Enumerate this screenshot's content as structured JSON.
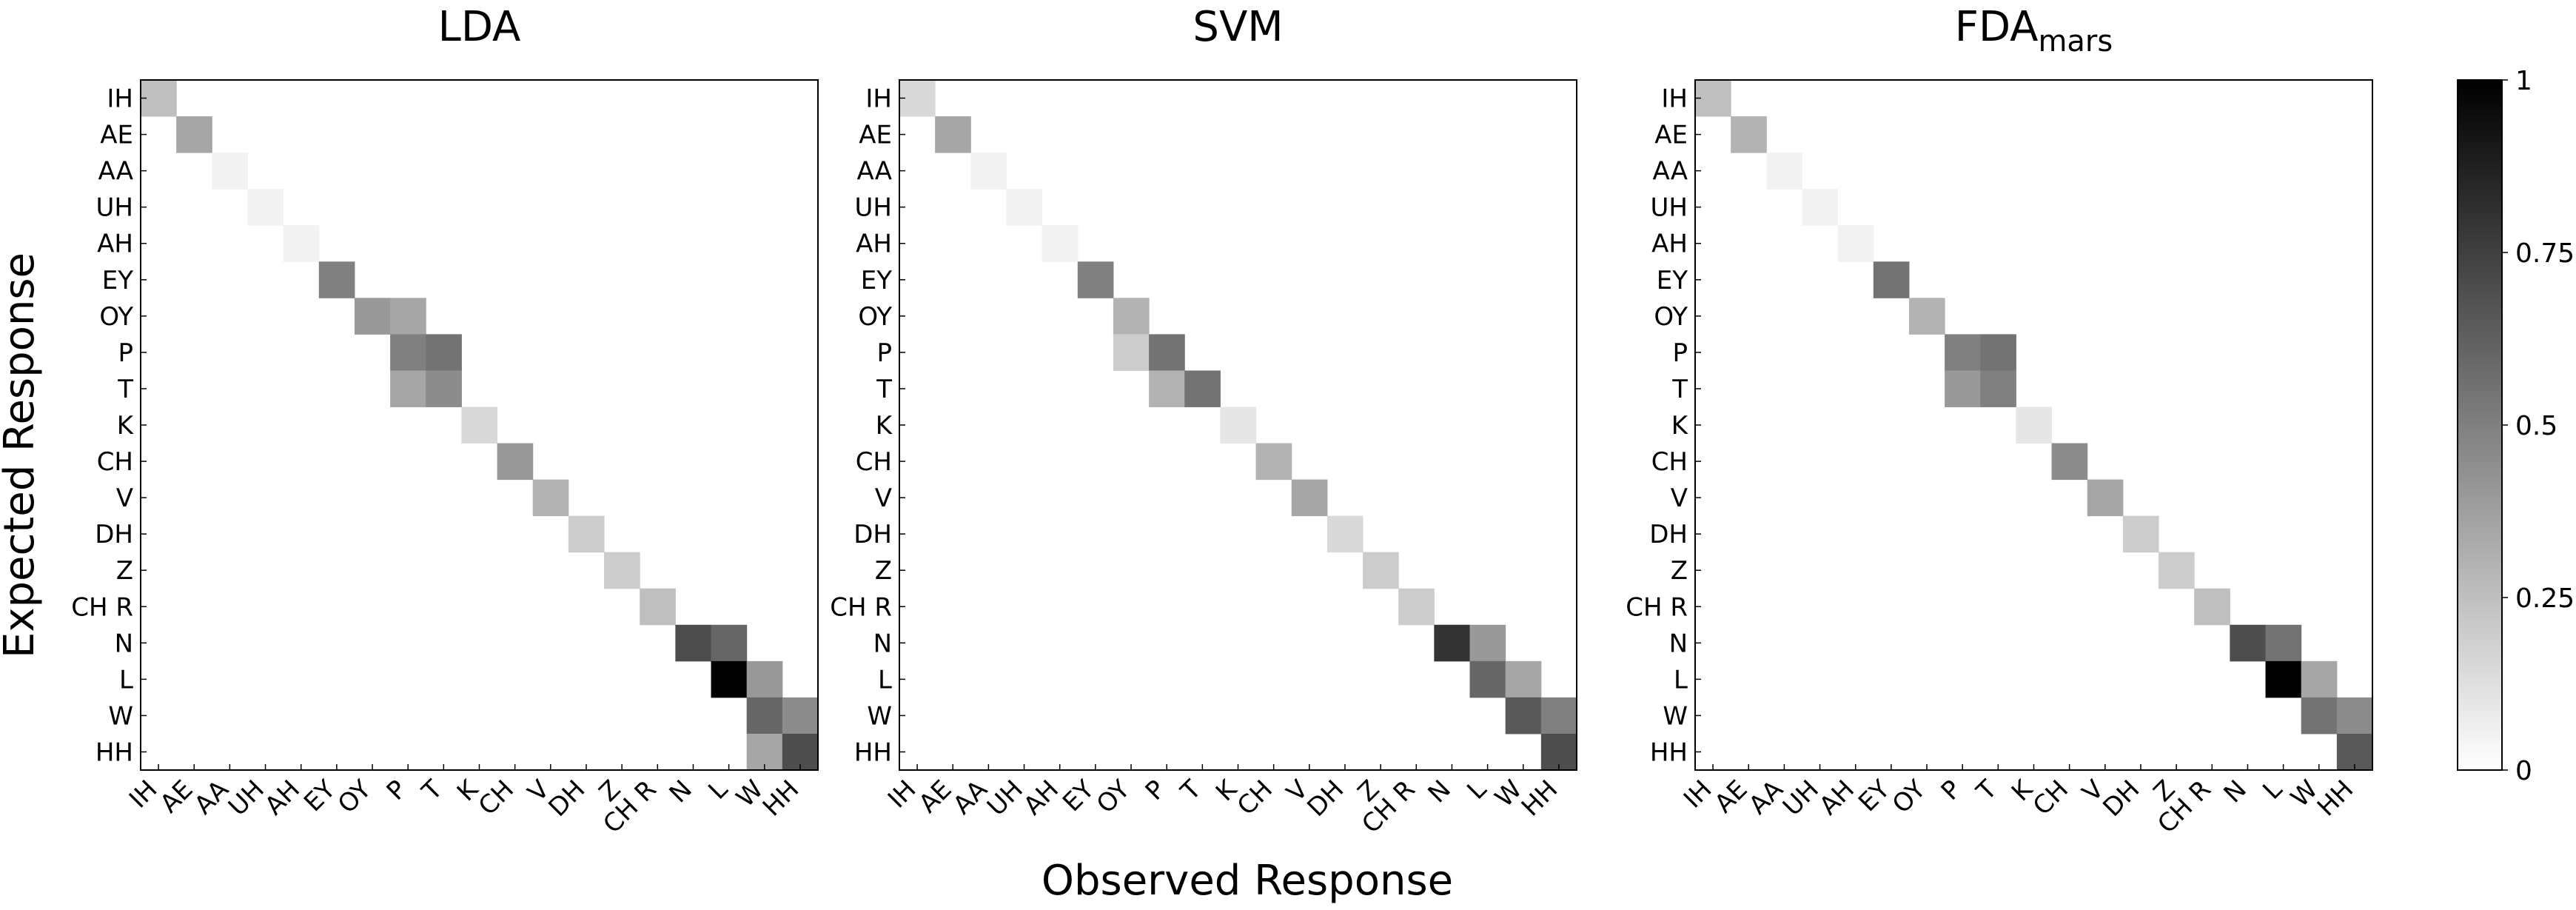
{
  "figure": {
    "ylabel": "Expected Response",
    "xlabel": "Observed Response"
  },
  "colorbar": {
    "min": 0,
    "max": 1,
    "ticks": [
      0,
      0.25,
      0.5,
      0.75,
      1
    ],
    "tick_labels": [
      "0",
      "0.25",
      "0.5",
      "0.75",
      "1"
    ],
    "colormap": "white-to-black"
  },
  "chart_data": [
    {
      "type": "heatmap",
      "title": "LDA",
      "title_subscript": "",
      "x_tick_labels": [
        "IH",
        "AE",
        "AA",
        "UH",
        "AH",
        "EY",
        "OY",
        "P",
        "T",
        "K",
        "CH",
        "V",
        "DH",
        "Z",
        "CH R",
        "N",
        "L",
        "W",
        "HH"
      ],
      "y_tick_labels": [
        "IH",
        "AE",
        "AA",
        "UH",
        "AH",
        "EY",
        "OY",
        "P",
        "T",
        "K",
        "CH",
        "V",
        "DH",
        "Z",
        "CH R",
        "N",
        "L",
        "W",
        "HH"
      ],
      "diagonal_values": [
        0.25,
        0.35,
        0.05,
        0.05,
        0.05,
        0.5,
        0.4,
        0.5,
        0.45,
        0.15,
        0.4,
        0.3,
        0.2,
        0.2,
        0.25,
        0.7,
        1.0,
        0.6,
        0.7
      ],
      "off_diagonal": [
        {
          "row": "OY",
          "col": "P",
          "value": 0.35
        },
        {
          "row": "P",
          "col": "T",
          "value": 0.55
        },
        {
          "row": "T",
          "col": "P",
          "value": 0.35
        },
        {
          "row": "N",
          "col": "L",
          "value": 0.6
        },
        {
          "row": "L",
          "col": "W",
          "value": 0.4
        },
        {
          "row": "W",
          "col": "HH",
          "value": 0.45
        },
        {
          "row": "HH",
          "col": "W",
          "value": 0.35
        }
      ]
    },
    {
      "type": "heatmap",
      "title": "SVM",
      "title_subscript": "",
      "x_tick_labels": [
        "IH",
        "AE",
        "AA",
        "UH",
        "AH",
        "EY",
        "OY",
        "P",
        "T",
        "K",
        "CH",
        "V",
        "DH",
        "Z",
        "CH R",
        "N",
        "L",
        "W",
        "HH"
      ],
      "y_tick_labels": [
        "IH",
        "AE",
        "AA",
        "UH",
        "AH",
        "EY",
        "OY",
        "P",
        "T",
        "K",
        "CH",
        "V",
        "DH",
        "Z",
        "CH R",
        "N",
        "L",
        "W",
        "HH"
      ],
      "diagonal_values": [
        0.15,
        0.35,
        0.05,
        0.05,
        0.05,
        0.5,
        0.3,
        0.55,
        0.55,
        0.1,
        0.3,
        0.35,
        0.15,
        0.2,
        0.2,
        0.8,
        0.6,
        0.65,
        0.7
      ],
      "off_diagonal": [
        {
          "row": "P",
          "col": "OY",
          "value": 0.2
        },
        {
          "row": "T",
          "col": "P",
          "value": 0.3
        },
        {
          "row": "N",
          "col": "L",
          "value": 0.4
        },
        {
          "row": "L",
          "col": "W",
          "value": 0.35
        },
        {
          "row": "W",
          "col": "HH",
          "value": 0.5
        }
      ]
    },
    {
      "type": "heatmap",
      "title": "FDA",
      "title_subscript": "mars",
      "x_tick_labels": [
        "IH",
        "AE",
        "AA",
        "UH",
        "AH",
        "EY",
        "OY",
        "P",
        "T",
        "K",
        "CH",
        "V",
        "DH",
        "Z",
        "CH R",
        "N",
        "L",
        "W",
        "HH"
      ],
      "y_tick_labels": [
        "IH",
        "AE",
        "AA",
        "UH",
        "AH",
        "EY",
        "OY",
        "P",
        "T",
        "K",
        "CH",
        "V",
        "DH",
        "Z",
        "CH R",
        "N",
        "L",
        "W",
        "HH"
      ],
      "diagonal_values": [
        0.25,
        0.3,
        0.05,
        0.05,
        0.05,
        0.55,
        0.3,
        0.5,
        0.5,
        0.1,
        0.45,
        0.35,
        0.2,
        0.2,
        0.25,
        0.7,
        1.0,
        0.55,
        0.65
      ],
      "off_diagonal": [
        {
          "row": "P",
          "col": "T",
          "value": 0.55
        },
        {
          "row": "T",
          "col": "P",
          "value": 0.4
        },
        {
          "row": "N",
          "col": "L",
          "value": 0.55
        },
        {
          "row": "L",
          "col": "W",
          "value": 0.35
        },
        {
          "row": "W",
          "col": "HH",
          "value": 0.45
        }
      ]
    }
  ]
}
